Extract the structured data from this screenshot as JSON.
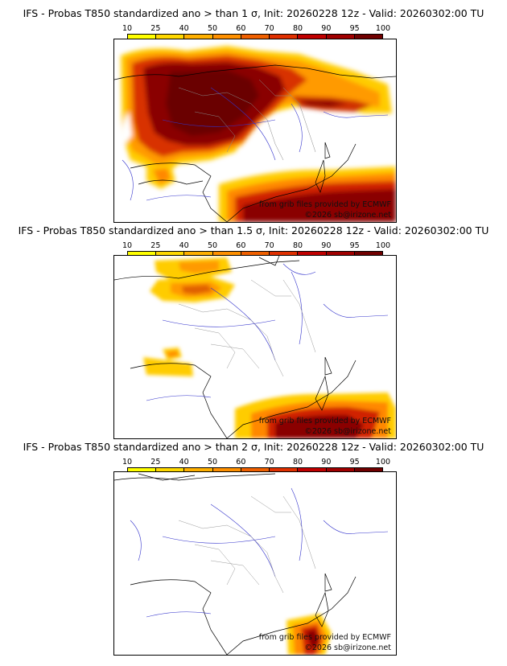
{
  "colorbar": {
    "ticks": [
      "10",
      "25",
      "40",
      "50",
      "60",
      "70",
      "80",
      "90",
      "95",
      "100"
    ],
    "colors": [
      "#ffff00",
      "#ffd800",
      "#ffb000",
      "#ff9000",
      "#f06000",
      "#e03000",
      "#c00000",
      "#a00000",
      "#700000"
    ]
  },
  "credits": {
    "source": "from grib files provided by ECMWF",
    "copyright": "©2026 sb@irizone.net"
  },
  "panels": [
    {
      "title": "IFS - Probas T850  standardized ano > than 1 σ, Init: 20260228 12z - Valid: 20260302:00 TU",
      "threshold_sigma": 1
    },
    {
      "title": "IFS - Probas T850  standardized ano > than 1.5 σ, Init: 20260228 12z - Valid: 20260302:00 TU",
      "threshold_sigma": 1.5
    },
    {
      "title": "IFS - Probas T850  standardized ano > than 2 σ, Init: 20260228 12z - Valid: 20260302:00 TU",
      "threshold_sigma": 2
    }
  ]
}
